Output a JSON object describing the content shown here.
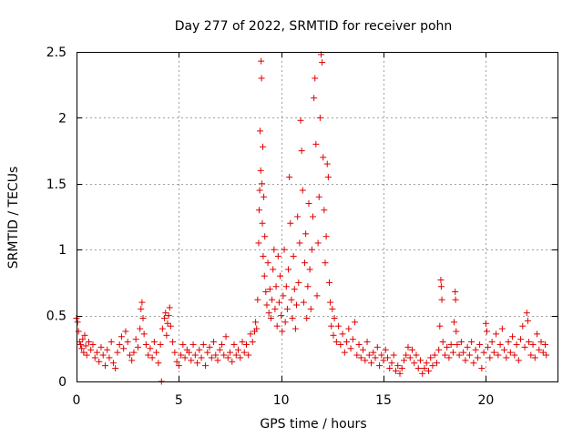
{
  "chart_data": {
    "type": "scatter",
    "title": "Day 277 of 2022, SRMTID for receiver pohn",
    "xlabel": "GPS time / hours",
    "ylabel": "SRMTID / TECUs",
    "xlim": [
      0,
      23.5
    ],
    "ylim": [
      0,
      2.5
    ],
    "xticks": [
      0,
      5,
      10,
      15,
      20
    ],
    "xtick_labels": [
      "0",
      "5",
      "10",
      "15",
      "20"
    ],
    "yticks": [
      0,
      0.5,
      1,
      1.5,
      2,
      2.5
    ],
    "ytick_labels": [
      "0",
      "0.5",
      "1",
      "1.5",
      "2",
      "2.5"
    ],
    "grid": true,
    "marker": "+",
    "color": "#e00000",
    "series": [
      {
        "name": "pohn",
        "points": [
          [
            0.0,
            0.48
          ],
          [
            0.05,
            0.45
          ],
          [
            0.1,
            0.38
          ],
          [
            0.15,
            0.3
          ],
          [
            0.2,
            0.28
          ],
          [
            0.25,
            0.25
          ],
          [
            0.3,
            0.32
          ],
          [
            0.35,
            0.22
          ],
          [
            0.4,
            0.35
          ],
          [
            0.45,
            0.27
          ],
          [
            0.5,
            0.2
          ],
          [
            0.6,
            0.3
          ],
          [
            0.7,
            0.24
          ],
          [
            0.8,
            0.28
          ],
          [
            0.9,
            0.18
          ],
          [
            1.0,
            0.22
          ],
          [
            1.1,
            0.15
          ],
          [
            1.2,
            0.26
          ],
          [
            1.3,
            0.2
          ],
          [
            1.4,
            0.12
          ],
          [
            1.5,
            0.24
          ],
          [
            1.6,
            0.18
          ],
          [
            1.7,
            0.3
          ],
          [
            1.8,
            0.14
          ],
          [
            1.9,
            0.1
          ],
          [
            2.0,
            0.22
          ],
          [
            2.1,
            0.28
          ],
          [
            2.2,
            0.34
          ],
          [
            2.3,
            0.25
          ],
          [
            2.4,
            0.38
          ],
          [
            2.5,
            0.3
          ],
          [
            2.6,
            0.2
          ],
          [
            2.7,
            0.16
          ],
          [
            2.8,
            0.22
          ],
          [
            2.9,
            0.32
          ],
          [
            3.0,
            0.26
          ],
          [
            3.1,
            0.4
          ],
          [
            3.15,
            0.55
          ],
          [
            3.2,
            0.6
          ],
          [
            3.25,
            0.48
          ],
          [
            3.3,
            0.36
          ],
          [
            3.4,
            0.28
          ],
          [
            3.5,
            0.2
          ],
          [
            3.6,
            0.25
          ],
          [
            3.7,
            0.18
          ],
          [
            3.8,
            0.3
          ],
          [
            3.9,
            0.22
          ],
          [
            4.0,
            0.14
          ],
          [
            4.1,
            0.28
          ],
          [
            4.15,
            0.0
          ],
          [
            4.2,
            0.4
          ],
          [
            4.3,
            0.48
          ],
          [
            4.35,
            0.52
          ],
          [
            4.4,
            0.35
          ],
          [
            4.45,
            0.44
          ],
          [
            4.5,
            0.5
          ],
          [
            4.55,
            0.56
          ],
          [
            4.6,
            0.42
          ],
          [
            4.7,
            0.3
          ],
          [
            4.8,
            0.22
          ],
          [
            4.9,
            0.15
          ],
          [
            5.0,
            0.12
          ],
          [
            5.1,
            0.2
          ],
          [
            5.2,
            0.28
          ],
          [
            5.3,
            0.18
          ],
          [
            5.4,
            0.24
          ],
          [
            5.5,
            0.22
          ],
          [
            5.6,
            0.16
          ],
          [
            5.7,
            0.28
          ],
          [
            5.8,
            0.2
          ],
          [
            5.9,
            0.14
          ],
          [
            6.0,
            0.24
          ],
          [
            6.1,
            0.18
          ],
          [
            6.2,
            0.28
          ],
          [
            6.3,
            0.12
          ],
          [
            6.4,
            0.22
          ],
          [
            6.5,
            0.26
          ],
          [
            6.6,
            0.18
          ],
          [
            6.7,
            0.3
          ],
          [
            6.8,
            0.2
          ],
          [
            6.9,
            0.16
          ],
          [
            7.0,
            0.24
          ],
          [
            7.1,
            0.28
          ],
          [
            7.2,
            0.2
          ],
          [
            7.3,
            0.34
          ],
          [
            7.4,
            0.18
          ],
          [
            7.5,
            0.22
          ],
          [
            7.6,
            0.15
          ],
          [
            7.7,
            0.28
          ],
          [
            7.8,
            0.2
          ],
          [
            7.9,
            0.24
          ],
          [
            8.0,
            0.18
          ],
          [
            8.1,
            0.3
          ],
          [
            8.2,
            0.22
          ],
          [
            8.3,
            0.28
          ],
          [
            8.4,
            0.2
          ],
          [
            8.5,
            0.36
          ],
          [
            8.6,
            0.3
          ],
          [
            8.7,
            0.38
          ],
          [
            8.75,
            0.45
          ],
          [
            8.8,
            0.4
          ],
          [
            8.85,
            0.62
          ],
          [
            8.9,
            1.05
          ],
          [
            8.92,
            1.3
          ],
          [
            8.95,
            1.45
          ],
          [
            8.97,
            1.9
          ],
          [
            9.0,
            1.6
          ],
          [
            9.02,
            2.43
          ],
          [
            9.04,
            2.3
          ],
          [
            9.06,
            1.5
          ],
          [
            9.08,
            1.2
          ],
          [
            9.1,
            1.78
          ],
          [
            9.12,
            0.95
          ],
          [
            9.15,
            1.4
          ],
          [
            9.18,
            0.8
          ],
          [
            9.2,
            1.1
          ],
          [
            9.25,
            0.68
          ],
          [
            9.3,
            0.58
          ],
          [
            9.35,
            0.9
          ],
          [
            9.4,
            0.52
          ],
          [
            9.45,
            0.7
          ],
          [
            9.5,
            0.48
          ],
          [
            9.55,
            0.62
          ],
          [
            9.6,
            0.85
          ],
          [
            9.65,
            1.0
          ],
          [
            9.7,
            0.55
          ],
          [
            9.75,
            0.72
          ],
          [
            9.8,
            0.42
          ],
          [
            9.85,
            0.95
          ],
          [
            9.9,
            0.6
          ],
          [
            9.95,
            0.8
          ],
          [
            10.0,
            0.5
          ],
          [
            10.05,
            0.38
          ],
          [
            10.1,
            0.65
          ],
          [
            10.15,
            1.0
          ],
          [
            10.2,
            0.45
          ],
          [
            10.25,
            0.72
          ],
          [
            10.3,
            0.55
          ],
          [
            10.35,
            0.85
          ],
          [
            10.4,
            1.55
          ],
          [
            10.45,
            1.2
          ],
          [
            10.5,
            0.62
          ],
          [
            10.55,
            0.48
          ],
          [
            10.6,
            0.95
          ],
          [
            10.65,
            0.7
          ],
          [
            10.7,
            0.4
          ],
          [
            10.75,
            0.58
          ],
          [
            10.8,
            1.25
          ],
          [
            10.85,
            0.75
          ],
          [
            10.9,
            1.05
          ],
          [
            10.95,
            1.98
          ],
          [
            11.0,
            1.75
          ],
          [
            11.05,
            1.45
          ],
          [
            11.1,
            0.6
          ],
          [
            11.15,
            0.9
          ],
          [
            11.2,
            1.12
          ],
          [
            11.25,
            0.48
          ],
          [
            11.3,
            0.72
          ],
          [
            11.35,
            1.35
          ],
          [
            11.4,
            0.85
          ],
          [
            11.45,
            0.55
          ],
          [
            11.5,
            1.0
          ],
          [
            11.55,
            1.25
          ],
          [
            11.6,
            2.15
          ],
          [
            11.65,
            2.3
          ],
          [
            11.7,
            1.8
          ],
          [
            11.75,
            0.65
          ],
          [
            11.8,
            1.05
          ],
          [
            11.85,
            1.4
          ],
          [
            11.9,
            2.0
          ],
          [
            11.95,
            2.48
          ],
          [
            12.0,
            2.42
          ],
          [
            12.05,
            1.7
          ],
          [
            12.1,
            1.3
          ],
          [
            12.15,
            0.9
          ],
          [
            12.2,
            1.1
          ],
          [
            12.25,
            1.65
          ],
          [
            12.3,
            1.55
          ],
          [
            12.35,
            0.75
          ],
          [
            12.4,
            0.6
          ],
          [
            12.45,
            0.42
          ],
          [
            12.5,
            0.55
          ],
          [
            12.55,
            0.35
          ],
          [
            12.6,
            0.48
          ],
          [
            12.7,
            0.3
          ],
          [
            12.8,
            0.42
          ],
          [
            12.9,
            0.28
          ],
          [
            13.0,
            0.36
          ],
          [
            13.1,
            0.22
          ],
          [
            13.2,
            0.3
          ],
          [
            13.3,
            0.4
          ],
          [
            13.4,
            0.25
          ],
          [
            13.5,
            0.32
          ],
          [
            13.6,
            0.45
          ],
          [
            13.7,
            0.2
          ],
          [
            13.8,
            0.28
          ],
          [
            13.9,
            0.18
          ],
          [
            14.0,
            0.24
          ],
          [
            14.1,
            0.16
          ],
          [
            14.2,
            0.3
          ],
          [
            14.3,
            0.2
          ],
          [
            14.4,
            0.14
          ],
          [
            14.5,
            0.22
          ],
          [
            14.6,
            0.18
          ],
          [
            14.7,
            0.26
          ],
          [
            14.8,
            0.12
          ],
          [
            14.9,
            0.2
          ],
          [
            15.0,
            0.16
          ],
          [
            15.1,
            0.24
          ],
          [
            15.2,
            0.18
          ],
          [
            15.3,
            0.1
          ],
          [
            15.4,
            0.14
          ],
          [
            15.5,
            0.2
          ],
          [
            15.6,
            0.08
          ],
          [
            15.7,
            0.12
          ],
          [
            15.8,
            0.06
          ],
          [
            15.9,
            0.1
          ],
          [
            16.0,
            0.16
          ],
          [
            16.1,
            0.2
          ],
          [
            16.2,
            0.26
          ],
          [
            16.3,
            0.18
          ],
          [
            16.4,
            0.24
          ],
          [
            16.5,
            0.14
          ],
          [
            16.6,
            0.2
          ],
          [
            16.7,
            0.1
          ],
          [
            16.8,
            0.16
          ],
          [
            16.9,
            0.06
          ],
          [
            17.0,
            0.1
          ],
          [
            17.1,
            0.14
          ],
          [
            17.2,
            0.08
          ],
          [
            17.3,
            0.18
          ],
          [
            17.4,
            0.12
          ],
          [
            17.5,
            0.2
          ],
          [
            17.6,
            0.14
          ],
          [
            17.7,
            0.24
          ],
          [
            17.75,
            0.42
          ],
          [
            17.8,
            0.77
          ],
          [
            17.82,
            0.72
          ],
          [
            17.85,
            0.62
          ],
          [
            17.9,
            0.3
          ],
          [
            18.0,
            0.2
          ],
          [
            18.1,
            0.26
          ],
          [
            18.2,
            0.18
          ],
          [
            18.3,
            0.28
          ],
          [
            18.4,
            0.22
          ],
          [
            18.45,
            0.45
          ],
          [
            18.5,
            0.68
          ],
          [
            18.52,
            0.62
          ],
          [
            18.55,
            0.38
          ],
          [
            18.6,
            0.28
          ],
          [
            18.7,
            0.2
          ],
          [
            18.8,
            0.3
          ],
          [
            18.9,
            0.22
          ],
          [
            19.0,
            0.16
          ],
          [
            19.1,
            0.26
          ],
          [
            19.2,
            0.2
          ],
          [
            19.3,
            0.3
          ],
          [
            19.4,
            0.14
          ],
          [
            19.5,
            0.24
          ],
          [
            19.6,
            0.18
          ],
          [
            19.7,
            0.28
          ],
          [
            19.8,
            0.1
          ],
          [
            19.9,
            0.22
          ],
          [
            20.0,
            0.44
          ],
          [
            20.05,
            0.38
          ],
          [
            20.1,
            0.26
          ],
          [
            20.2,
            0.18
          ],
          [
            20.3,
            0.3
          ],
          [
            20.4,
            0.22
          ],
          [
            20.5,
            0.36
          ],
          [
            20.6,
            0.2
          ],
          [
            20.7,
            0.28
          ],
          [
            20.8,
            0.4
          ],
          [
            20.9,
            0.24
          ],
          [
            21.0,
            0.18
          ],
          [
            21.1,
            0.3
          ],
          [
            21.2,
            0.22
          ],
          [
            21.3,
            0.34
          ],
          [
            21.4,
            0.2
          ],
          [
            21.5,
            0.28
          ],
          [
            21.6,
            0.16
          ],
          [
            21.7,
            0.32
          ],
          [
            21.8,
            0.42
          ],
          [
            21.9,
            0.26
          ],
          [
            22.0,
            0.52
          ],
          [
            22.05,
            0.46
          ],
          [
            22.1,
            0.3
          ],
          [
            22.2,
            0.2
          ],
          [
            22.3,
            0.28
          ],
          [
            22.4,
            0.18
          ],
          [
            22.5,
            0.36
          ],
          [
            22.6,
            0.24
          ],
          [
            22.7,
            0.3
          ],
          [
            22.8,
            0.22
          ],
          [
            22.9,
            0.28
          ],
          [
            22.95,
            0.2
          ]
        ]
      }
    ]
  }
}
